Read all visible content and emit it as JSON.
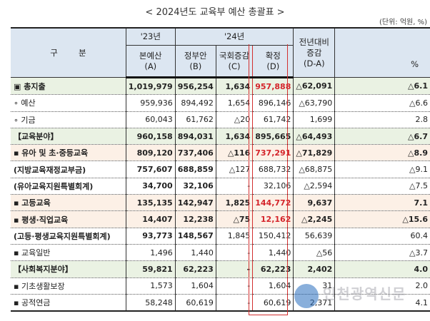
{
  "title": "< 2024년도 교육부 예산 총괄표 >",
  "unit": "(단위: 억원, %)",
  "header": {
    "category": "구        분",
    "y23": "'23년",
    "y24": "'24년",
    "a": "본예산",
    "a_sub": "(A)",
    "b": "정부안",
    "b_sub": "(B)",
    "c": "국회증감",
    "c_sub": "(C)",
    "d": "확정",
    "d_sub": "(D)",
    "diff": "전년대비 증감",
    "diff_sub": "(D-A)",
    "pct": "%"
  },
  "rows": [
    {
      "label": "▣ 총지출",
      "a": "1,019,979",
      "b": "956,254",
      "c": "1,634",
      "d": "957,888",
      "diff": "△62,091",
      "pct": "△6.1"
    },
    {
      "label": "∘ 예산",
      "a": "959,936",
      "b": "894,492",
      "c": "1,654",
      "d": "896,146",
      "diff": "△63,790",
      "pct": "△6.6"
    },
    {
      "label": "∘ 기금",
      "a": "60,043",
      "b": "61,762",
      "c": "△20",
      "d": "61,742",
      "diff": "1,699",
      "pct": "2.8"
    },
    {
      "label": "【교육분야】",
      "a": "960,158",
      "b": "894,031",
      "c": "1,634",
      "d": "895,665",
      "diff": "△64,493",
      "pct": "△6.7"
    },
    {
      "label": "▪ 유아 및 초·중등교육",
      "a": "809,120",
      "b": "737,406",
      "c": "△116",
      "d": "737,291",
      "diff": "△71,829",
      "pct": "△8.9"
    },
    {
      "label": "(지방교육재정교부금)",
      "a": "757,607",
      "b": "688,859",
      "c": "△127",
      "d": "688,732",
      "diff": "△68,875",
      "pct": "△9.1"
    },
    {
      "label": "(유아교육지원특별회계)",
      "a": "34,700",
      "b": "32,106",
      "c": "-",
      "d": "32,106",
      "diff": "△2,594",
      "pct": "△7.5"
    },
    {
      "label": "▪ 고등교육",
      "a": "135,135",
      "b": "142,947",
      "c": "1,825",
      "d": "144,772",
      "diff": "9,637",
      "pct": "7.1"
    },
    {
      "label": "▪ 평생·직업교육",
      "a": "14,407",
      "b": "12,238",
      "c": "△75",
      "d": "12,162",
      "diff": "△2,245",
      "pct": "△15.6"
    },
    {
      "label": "(고등·평생교육지원특별회계)",
      "a": "93,773",
      "b": "148,567",
      "c": "1,845",
      "d": "150,412",
      "diff": "56,639",
      "pct": "60.4"
    },
    {
      "label": "▪ 교육일반",
      "a": "1,496",
      "b": "1,440",
      "c": "-",
      "d": "1,440",
      "diff": "△56",
      "pct": "△3.7"
    },
    {
      "label": "【사회복지분야】",
      "a": "59,821",
      "b": "62,223",
      "c": "-",
      "d": "62,223",
      "diff": "2,402",
      "pct": "4.0"
    },
    {
      "label": "▪ 기초생활보장",
      "a": "1,573",
      "b": "1,604",
      "c": "-",
      "d": "1,604",
      "diff": "31",
      "pct": "2.0"
    },
    {
      "label": "▪ 공적연금",
      "a": "58,248",
      "b": "60,619",
      "c": "-",
      "d": "60,619",
      "diff": "2,371",
      "pct": "4.1"
    }
  ],
  "colors": {
    "header_bg": "#dce6f1",
    "green_row": "#eaf2e3",
    "orange_row": "#fcf0e6",
    "highlight_red": "#d4242a"
  },
  "watermark": "인천광역신문"
}
